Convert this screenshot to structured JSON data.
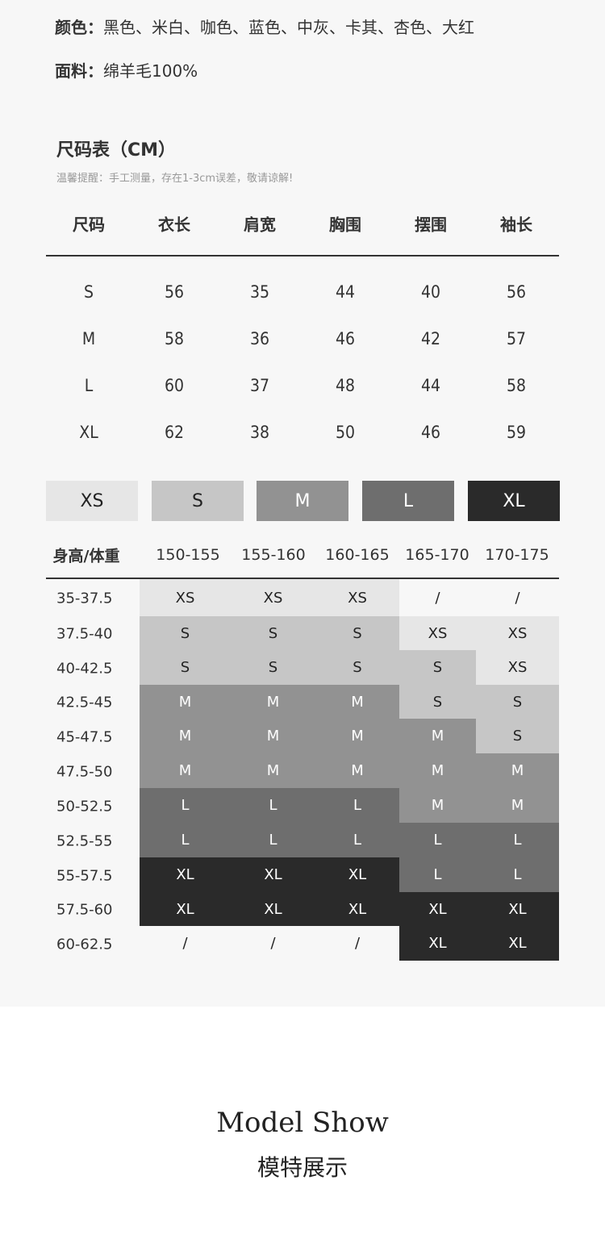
{
  "info": {
    "color_label": "颜色：",
    "color_value": "黑色、米白、咖色、蓝色、中灰、卡其、杏色、大红",
    "fabric_label": "面料：",
    "fabric_value": "绵羊毛100%"
  },
  "size_chart": {
    "title": "尺码表（CM）",
    "note": "温馨提醒：手工测量，存在1-3cm误差，敬请谅解!",
    "headers": [
      "尺码",
      "衣长",
      "肩宽",
      "胸围",
      "摆围",
      "袖长"
    ],
    "rows": [
      [
        "S",
        "56",
        "35",
        "44",
        "40",
        "56"
      ],
      [
        "M",
        "58",
        "36",
        "46",
        "42",
        "57"
      ],
      [
        "L",
        "60",
        "37",
        "48",
        "44",
        "58"
      ],
      [
        "XL",
        "62",
        "38",
        "50",
        "46",
        "59"
      ]
    ]
  },
  "legend": [
    {
      "label": "XS",
      "color": "#e6e6e6",
      "text": "#222"
    },
    {
      "label": "S",
      "color": "#c6c6c6",
      "text": "#222"
    },
    {
      "label": "M",
      "color": "#929292",
      "text": "#fff"
    },
    {
      "label": "L",
      "color": "#6e6e6e",
      "text": "#fff"
    },
    {
      "label": "XL",
      "color": "#2a2a2a",
      "text": "#fff"
    }
  ],
  "recommend": {
    "corner": "身高/体重",
    "heights": [
      "150-155",
      "155-160",
      "160-165",
      "165-170",
      "170-175"
    ],
    "weights": [
      "35-37.5",
      "37.5-40",
      "40-42.5",
      "42.5-45",
      "45-47.5",
      "47.5-50",
      "50-52.5",
      "52.5-55",
      "55-57.5",
      "57.5-60",
      "60-62.5"
    ],
    "grid": [
      [
        "XS",
        "XS",
        "XS",
        "/",
        "/"
      ],
      [
        "S",
        "S",
        "S",
        "XS",
        "XS"
      ],
      [
        "S",
        "S",
        "S",
        "S",
        "XS"
      ],
      [
        "M",
        "M",
        "M",
        "S",
        "S"
      ],
      [
        "M",
        "M",
        "M",
        "M",
        "S"
      ],
      [
        "M",
        "M",
        "M",
        "M",
        "M"
      ],
      [
        "L",
        "L",
        "L",
        "M",
        "M"
      ],
      [
        "L",
        "L",
        "L",
        "L",
        "L"
      ],
      [
        "XL",
        "XL",
        "XL",
        "L",
        "L"
      ],
      [
        "XL",
        "XL",
        "XL",
        "XL",
        "XL"
      ],
      [
        "/",
        "/",
        "/",
        "XL",
        "XL"
      ]
    ]
  },
  "model_show": {
    "en": "Model Show",
    "zh": "模特展示"
  }
}
